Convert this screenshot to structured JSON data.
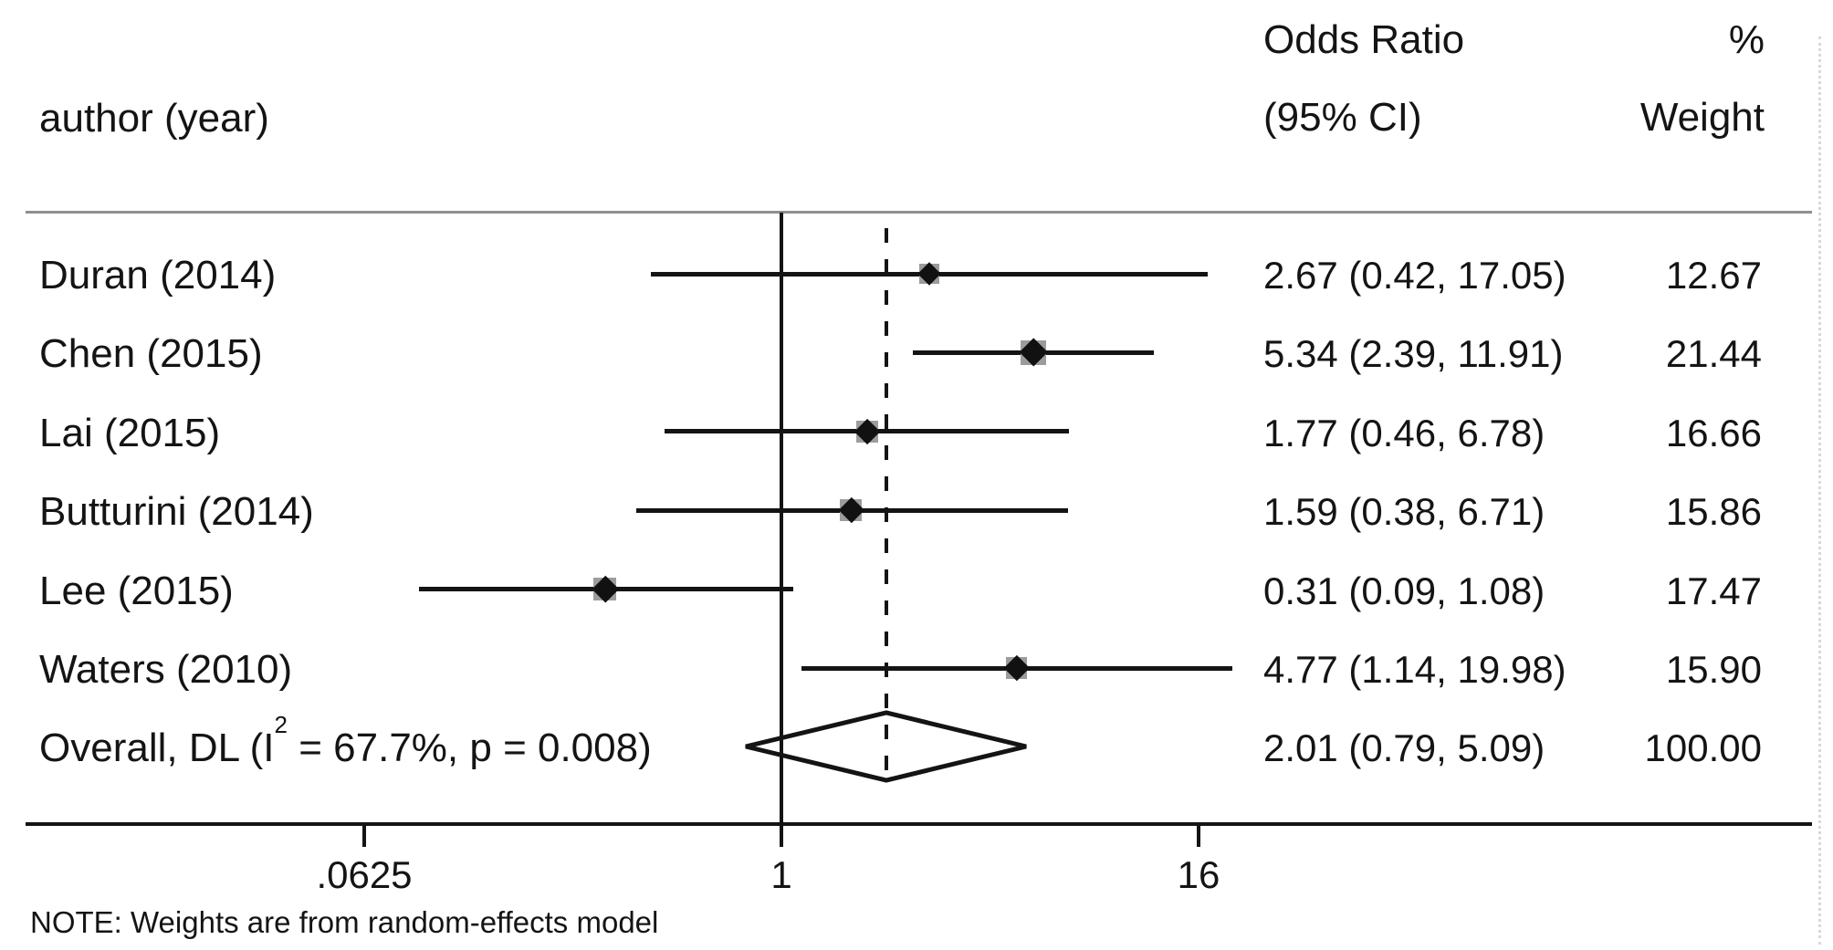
{
  "header": {
    "author": "author (year)",
    "effect_line1": "Odds Ratio",
    "effect_line2": "(95% CI)",
    "weight_line1": "%",
    "weight_line2": "Weight"
  },
  "note": "NOTE: Weights are from random-effects model",
  "colors": {
    "text": "#141414",
    "marker_square": "#9c9c9c",
    "top_rule": "#8f8f8f",
    "background": "#ffffff"
  },
  "chart_data": {
    "type": "forest",
    "x_scale": "log2",
    "x_axis_ticks": [
      {
        "label": ".0625",
        "value": 0.0625
      },
      {
        "label": "1",
        "value": 1
      },
      {
        "label": "16",
        "value": 16
      }
    ],
    "null_line_value": 1,
    "overall_dashed_line_value": 2.01,
    "studies": [
      {
        "label": "Duran (2014)",
        "or": 2.67,
        "ci_low": 0.42,
        "ci_high": 17.05,
        "or_ci_label": "2.67 (0.42, 17.05)",
        "weight": 12.67,
        "weight_label": "12.67"
      },
      {
        "label": "Chen (2015)",
        "or": 5.34,
        "ci_low": 2.39,
        "ci_high": 11.91,
        "or_ci_label": "5.34 (2.39, 11.91)",
        "weight": 21.44,
        "weight_label": "21.44"
      },
      {
        "label": "Lai (2015)",
        "or": 1.77,
        "ci_low": 0.46,
        "ci_high": 6.78,
        "or_ci_label": "1.77 (0.46, 6.78)",
        "weight": 16.66,
        "weight_label": "16.66"
      },
      {
        "label": "Butturini (2014)",
        "or": 1.59,
        "ci_low": 0.38,
        "ci_high": 6.71,
        "or_ci_label": "1.59 (0.38, 6.71)",
        "weight": 15.86,
        "weight_label": "15.86"
      },
      {
        "label": "Lee (2015)",
        "or": 0.31,
        "ci_low": 0.09,
        "ci_high": 1.08,
        "or_ci_label": "0.31 (0.09, 1.08)",
        "weight": 17.47,
        "weight_label": "17.47"
      },
      {
        "label": "Waters (2010)",
        "or": 4.77,
        "ci_low": 1.14,
        "ci_high": 19.98,
        "or_ci_label": "4.77 (1.14, 19.98)",
        "weight": 15.9,
        "weight_label": "15.90"
      }
    ],
    "overall": {
      "label_prefix": "Overall, DL (I",
      "label_sup": "2",
      "label_suffix": " = 67.7%, p = 0.008)",
      "or": 2.01,
      "ci_low": 0.79,
      "ci_high": 5.09,
      "or_ci_label": "2.01 (0.79, 5.09)",
      "weight_label": "100.00",
      "i_squared": "67.7%",
      "p_value": "0.008",
      "model": "DL"
    }
  }
}
